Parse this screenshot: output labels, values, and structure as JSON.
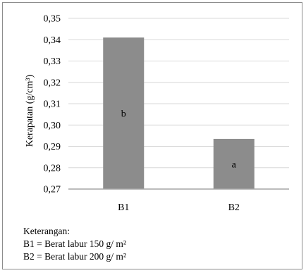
{
  "chart_data": {
    "type": "bar",
    "categories": [
      "B1",
      "B2"
    ],
    "values": [
      0.341,
      0.2935
    ],
    "bar_labels": [
      "b",
      "a"
    ],
    "ylabel": "Kerapatan (g/cm³)",
    "xlabel": "",
    "title": "",
    "ylim": [
      0.27,
      0.35
    ],
    "yticks": [
      "0,27",
      "0,28",
      "0,29",
      "0,30",
      "0,31",
      "0,32",
      "0,33",
      "0,34",
      "0,35"
    ],
    "grid": true,
    "bar_color": "#8c8c8c",
    "grid_color": "#d9d9d9"
  },
  "notes": {
    "title": "Keterangan:",
    "lines": [
      "B1 = Berat labur 150 g/ m²",
      "B2 = Berat labur 200 g/ m²"
    ]
  }
}
